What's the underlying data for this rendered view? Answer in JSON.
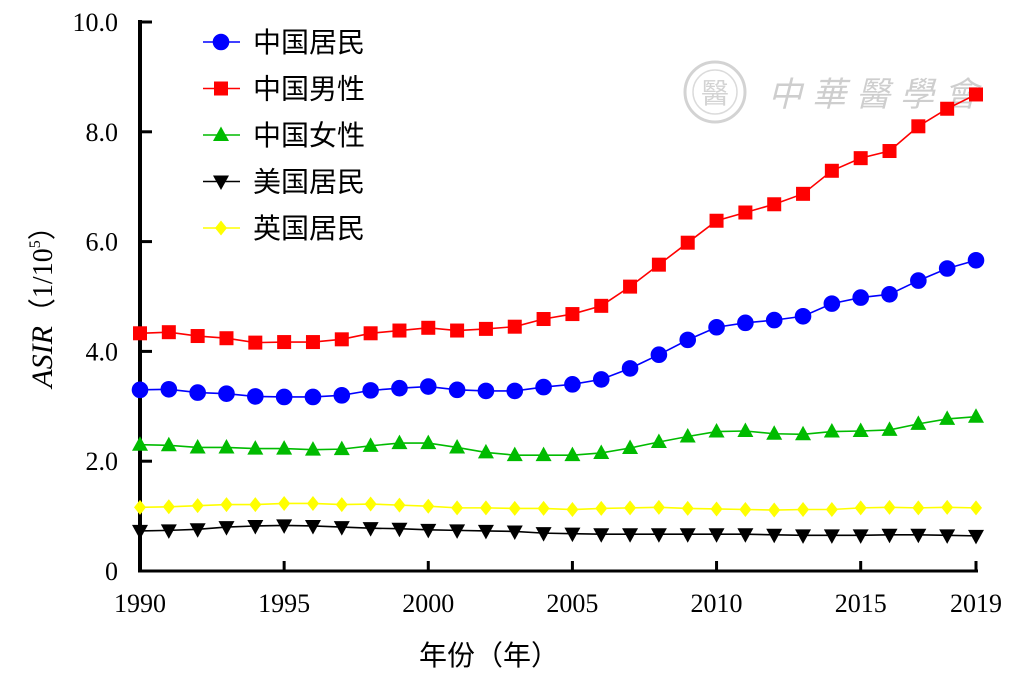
{
  "chart_data": {
    "type": "line",
    "title": "",
    "xlabel": "年份（年）",
    "ylabel_main": "ASIR",
    "ylabel_unit": "（1/10",
    "ylabel_sup": "5",
    "ylabel_close": "）",
    "xlim": [
      1990,
      2019
    ],
    "ylim": [
      0,
      10
    ],
    "x_ticks": [
      1990,
      1995,
      2000,
      2005,
      2010,
      2015,
      2019
    ],
    "x_tick_labels": [
      "1990",
      "1995",
      "2000",
      "2005",
      "2010",
      "2015",
      "2019"
    ],
    "y_ticks": [
      0,
      2,
      4,
      6,
      8,
      10
    ],
    "y_tick_labels": [
      "0",
      "2.0",
      "4.0",
      "6.0",
      "8.0",
      "10.0"
    ],
    "legend_position": "top-left",
    "grid": false,
    "x": [
      1990,
      1991,
      1992,
      1993,
      1994,
      1995,
      1996,
      1997,
      1998,
      1999,
      2000,
      2001,
      2002,
      2003,
      2004,
      2005,
      2006,
      2007,
      2008,
      2009,
      2010,
      2011,
      2012,
      2013,
      2014,
      2015,
      2016,
      2017,
      2018,
      2019
    ],
    "series": [
      {
        "name": "中国居民",
        "color": "#0000ff",
        "marker": "circle",
        "values": [
          3.3,
          3.31,
          3.25,
          3.23,
          3.18,
          3.17,
          3.17,
          3.2,
          3.29,
          3.33,
          3.36,
          3.3,
          3.28,
          3.28,
          3.35,
          3.4,
          3.49,
          3.69,
          3.94,
          4.21,
          4.44,
          4.52,
          4.57,
          4.64,
          4.87,
          4.98,
          5.04,
          5.29,
          5.51,
          5.66
        ]
      },
      {
        "name": "中国男性",
        "color": "#ff0000",
        "marker": "square",
        "values": [
          4.33,
          4.35,
          4.28,
          4.24,
          4.16,
          4.17,
          4.17,
          4.22,
          4.33,
          4.38,
          4.43,
          4.38,
          4.41,
          4.45,
          4.59,
          4.68,
          4.83,
          5.18,
          5.58,
          5.98,
          6.38,
          6.53,
          6.68,
          6.87,
          7.29,
          7.52,
          7.65,
          8.1,
          8.42,
          8.68
        ]
      },
      {
        "name": "中国女性",
        "color": "#00bb00",
        "marker": "triangle-up",
        "values": [
          2.3,
          2.29,
          2.25,
          2.25,
          2.23,
          2.23,
          2.21,
          2.22,
          2.28,
          2.33,
          2.33,
          2.25,
          2.16,
          2.11,
          2.11,
          2.11,
          2.15,
          2.24,
          2.35,
          2.45,
          2.54,
          2.55,
          2.5,
          2.49,
          2.54,
          2.55,
          2.57,
          2.68,
          2.77,
          2.81
        ]
      },
      {
        "name": "美国居民",
        "color": "#000000",
        "marker": "triangle-down",
        "values": [
          0.73,
          0.74,
          0.76,
          0.8,
          0.82,
          0.83,
          0.82,
          0.8,
          0.78,
          0.77,
          0.75,
          0.74,
          0.73,
          0.72,
          0.69,
          0.68,
          0.67,
          0.67,
          0.67,
          0.67,
          0.67,
          0.67,
          0.66,
          0.65,
          0.65,
          0.65,
          0.66,
          0.66,
          0.65,
          0.64
        ]
      },
      {
        "name": "英国居民",
        "color": "#ffff00",
        "marker": "diamond",
        "values": [
          1.16,
          1.17,
          1.19,
          1.21,
          1.21,
          1.23,
          1.23,
          1.21,
          1.22,
          1.2,
          1.18,
          1.15,
          1.15,
          1.14,
          1.14,
          1.12,
          1.14,
          1.15,
          1.16,
          1.14,
          1.13,
          1.12,
          1.11,
          1.12,
          1.12,
          1.15,
          1.16,
          1.15,
          1.16,
          1.15
        ]
      }
    ]
  },
  "watermark": {
    "text": "中華醫學會",
    "seal_glyph": "醫"
  }
}
